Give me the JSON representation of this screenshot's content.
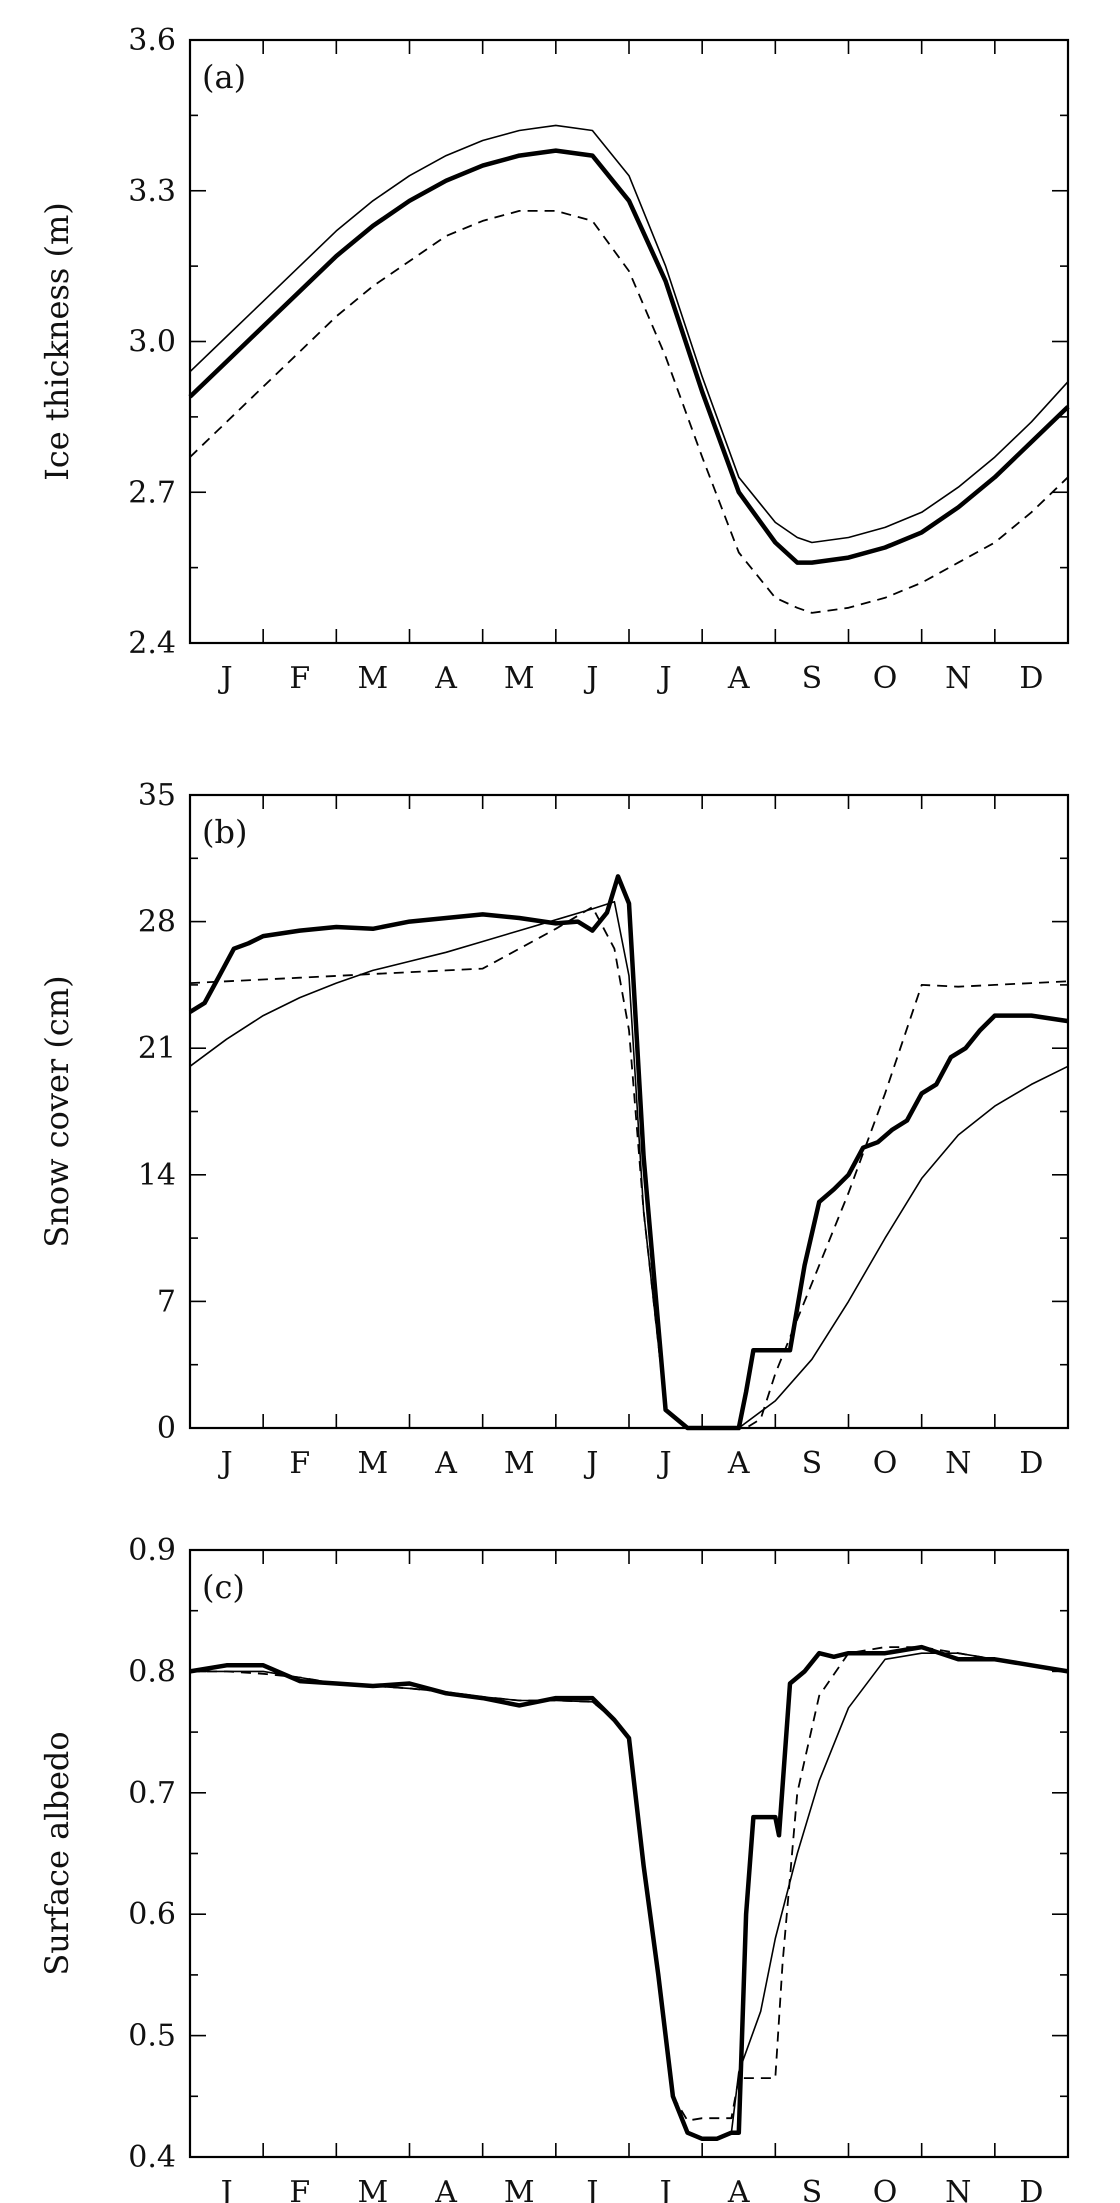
{
  "chart_data": [
    {
      "type": "line",
      "panel_label": "(a)",
      "ylabel": "Ice thickness (m)",
      "ylim": [
        2.4,
        3.6
      ],
      "yticks": [
        "2.4",
        "2.7",
        "3.0",
        "3.3",
        "3.6"
      ],
      "x_categories": [
        "J",
        "F",
        "M",
        "A",
        "M",
        "J",
        "J",
        "A",
        "S",
        "O",
        "N",
        "D"
      ],
      "xlim": [
        0,
        12
      ],
      "series": [
        {
          "style": "thick",
          "x": [
            0,
            0.5,
            1,
            1.5,
            2,
            2.5,
            3,
            3.5,
            4,
            4.5,
            5,
            5.5,
            6,
            6.5,
            7,
            7.5,
            8,
            8.3,
            8.5,
            9,
            9.5,
            10,
            10.5,
            11,
            11.5,
            12
          ],
          "y": [
            2.89,
            2.96,
            3.03,
            3.1,
            3.17,
            3.23,
            3.28,
            3.32,
            3.35,
            3.37,
            3.38,
            3.37,
            3.28,
            3.12,
            2.9,
            2.7,
            2.6,
            2.56,
            2.56,
            2.57,
            2.59,
            2.62,
            2.67,
            2.73,
            2.8,
            2.87
          ]
        },
        {
          "style": "thin",
          "x": [
            0,
            0.5,
            1,
            1.5,
            2,
            2.5,
            3,
            3.5,
            4,
            4.5,
            5,
            5.5,
            6,
            6.5,
            7,
            7.5,
            8,
            8.3,
            8.5,
            9,
            9.5,
            10,
            10.5,
            11,
            11.5,
            12
          ],
          "y": [
            2.94,
            3.01,
            3.08,
            3.15,
            3.22,
            3.28,
            3.33,
            3.37,
            3.4,
            3.42,
            3.43,
            3.42,
            3.33,
            3.15,
            2.93,
            2.73,
            2.64,
            2.61,
            2.6,
            2.61,
            2.63,
            2.66,
            2.71,
            2.77,
            2.84,
            2.92
          ]
        },
        {
          "style": "dashed",
          "x": [
            0,
            0.5,
            1,
            1.5,
            2,
            2.5,
            3,
            3.5,
            4,
            4.5,
            5,
            5.5,
            6,
            6.5,
            7,
            7.5,
            8,
            8.3,
            8.5,
            9,
            9.5,
            10,
            10.5,
            11,
            11.5,
            12
          ],
          "y": [
            2.77,
            2.84,
            2.91,
            2.98,
            3.05,
            3.11,
            3.16,
            3.21,
            3.24,
            3.26,
            3.26,
            3.24,
            3.14,
            2.97,
            2.77,
            2.58,
            2.49,
            2.47,
            2.46,
            2.47,
            2.49,
            2.52,
            2.56,
            2.6,
            2.66,
            2.73
          ]
        }
      ]
    },
    {
      "type": "line",
      "panel_label": "(b)",
      "ylabel": "Snow cover (cm)",
      "ylim": [
        0,
        35
      ],
      "yticks": [
        "0",
        "7",
        "14",
        "21",
        "28",
        "35"
      ],
      "x_categories": [
        "J",
        "F",
        "M",
        "A",
        "M",
        "J",
        "J",
        "A",
        "S",
        "O",
        "N",
        "D"
      ],
      "xlim": [
        0,
        12
      ],
      "series": [
        {
          "style": "thick",
          "x": [
            0,
            0.2,
            0.4,
            0.6,
            0.8,
            1,
            1.5,
            2,
            2.5,
            3,
            3.5,
            4,
            4.5,
            5,
            5.3,
            5.5,
            5.7,
            5.85,
            6,
            6.2,
            6.5,
            6.8,
            7,
            7.5,
            7.6,
            7.7,
            7.8,
            8,
            8.2,
            8.4,
            8.6,
            8.8,
            9,
            9.2,
            9.4,
            9.6,
            9.8,
            10,
            10.2,
            10.4,
            10.6,
            10.8,
            11,
            11.2,
            11.5,
            12
          ],
          "y": [
            23,
            23.5,
            25,
            26.5,
            26.8,
            27.2,
            27.5,
            27.7,
            27.6,
            28,
            28.2,
            28.4,
            28.2,
            27.9,
            28,
            27.5,
            28.5,
            30.5,
            29,
            15,
            1,
            0,
            0,
            0,
            2,
            4.3,
            4.3,
            4.3,
            4.3,
            9,
            12.5,
            13.2,
            14,
            15.5,
            15.8,
            16.5,
            17,
            18.5,
            19,
            20.5,
            21,
            22,
            22.8,
            22.8,
            22.8,
            22.5
          ]
        },
        {
          "style": "thin",
          "x": [
            0,
            0.5,
            1,
            1.5,
            2,
            2.5,
            3,
            3.5,
            4,
            4.5,
            5,
            5.5,
            5.8,
            6,
            6.2,
            6.5,
            6.8,
            7,
            7.5,
            8,
            8.5,
            9,
            9.5,
            10,
            10.5,
            11,
            11.5,
            12
          ],
          "y": [
            20,
            21.5,
            22.8,
            23.8,
            24.6,
            25.3,
            25.8,
            26.3,
            26.9,
            27.5,
            28.1,
            28.7,
            29.1,
            25,
            12,
            1,
            0,
            0,
            0,
            1.5,
            3.8,
            7,
            10.5,
            13.8,
            16.2,
            17.8,
            19,
            20
          ]
        },
        {
          "style": "dashed",
          "x": [
            0,
            0.5,
            1,
            1.5,
            2,
            2.5,
            3,
            3.5,
            4,
            4.5,
            5,
            5.5,
            5.8,
            6,
            6.2,
            6.5,
            6.8,
            7,
            7.3,
            7.6,
            7.8,
            8,
            8.5,
            9,
            9.5,
            10,
            10.5,
            11,
            11.5,
            12
          ],
          "y": [
            24.6,
            24.7,
            24.8,
            24.9,
            25.0,
            25.1,
            25.2,
            25.3,
            25.4,
            26.5,
            27.6,
            28.8,
            26.5,
            22,
            12,
            1,
            0,
            0,
            0,
            0,
            0.5,
            3,
            8,
            13,
            18.5,
            24.5,
            24.4,
            24.5,
            24.6,
            24.7
          ]
        }
      ]
    },
    {
      "type": "line",
      "panel_label": "(c)",
      "ylabel": "Surface albedo",
      "ylim": [
        0.4,
        0.9
      ],
      "yticks": [
        "0.4",
        "0.5",
        "0.6",
        "0.7",
        "0.8",
        "0.9"
      ],
      "x_categories": [
        "J",
        "F",
        "M",
        "A",
        "M",
        "J",
        "J",
        "A",
        "S",
        "O",
        "N",
        "D"
      ],
      "xlim": [
        0,
        12
      ],
      "series": [
        {
          "style": "thick",
          "x": [
            0,
            0.5,
            1,
            1.5,
            2,
            2.5,
            3,
            3.5,
            4,
            4.5,
            5,
            5.5,
            5.8,
            6,
            6.2,
            6.4,
            6.6,
            6.8,
            7,
            7.2,
            7.4,
            7.5,
            7.6,
            7.7,
            7.9,
            8,
            8.05,
            8.2,
            8.4,
            8.6,
            8.8,
            9,
            9.5,
            10,
            10.5,
            11,
            11.5,
            12
          ],
          "y": [
            0.8,
            0.805,
            0.805,
            0.792,
            0.79,
            0.788,
            0.79,
            0.782,
            0.778,
            0.772,
            0.778,
            0.778,
            0.76,
            0.745,
            0.64,
            0.55,
            0.45,
            0.42,
            0.415,
            0.415,
            0.42,
            0.42,
            0.6,
            0.68,
            0.68,
            0.68,
            0.665,
            0.79,
            0.8,
            0.815,
            0.812,
            0.815,
            0.815,
            0.82,
            0.81,
            0.81,
            0.805,
            0.8
          ]
        },
        {
          "style": "thin",
          "x": [
            0,
            0.5,
            1,
            1.5,
            2,
            2.5,
            3,
            3.5,
            4,
            4.5,
            5,
            5.5,
            5.8,
            6,
            6.2,
            6.4,
            6.6,
            6.8,
            7,
            7.2,
            7.4,
            7.5,
            7.8,
            8,
            8.3,
            8.6,
            9,
            9.5,
            10,
            10.5,
            11,
            11.5,
            12
          ],
          "y": [
            0.8,
            0.8,
            0.8,
            0.795,
            0.79,
            0.788,
            0.786,
            0.783,
            0.779,
            0.776,
            0.776,
            0.775,
            0.76,
            0.745,
            0.64,
            0.55,
            0.45,
            0.42,
            0.416,
            0.416,
            0.42,
            0.47,
            0.52,
            0.58,
            0.65,
            0.71,
            0.77,
            0.81,
            0.815,
            0.815,
            0.81,
            0.805,
            0.8
          ]
        },
        {
          "style": "dashed",
          "x": [
            0,
            0.5,
            1,
            1.5,
            2,
            2.5,
            3,
            3.5,
            4,
            4.5,
            5,
            5.5,
            5.8,
            6,
            6.2,
            6.4,
            6.6,
            6.8,
            7,
            7.2,
            7.4,
            7.5,
            7.8,
            8,
            8.1,
            8.3,
            8.6,
            9,
            9.5,
            10,
            10.5,
            11,
            11.5,
            12
          ],
          "y": [
            0.8,
            0.8,
            0.798,
            0.795,
            0.79,
            0.788,
            0.786,
            0.783,
            0.779,
            0.776,
            0.776,
            0.775,
            0.76,
            0.745,
            0.64,
            0.55,
            0.45,
            0.43,
            0.432,
            0.432,
            0.432,
            0.465,
            0.465,
            0.465,
            0.56,
            0.7,
            0.78,
            0.815,
            0.82,
            0.82,
            0.815,
            0.81,
            0.805,
            0.8
          ]
        }
      ]
    }
  ]
}
